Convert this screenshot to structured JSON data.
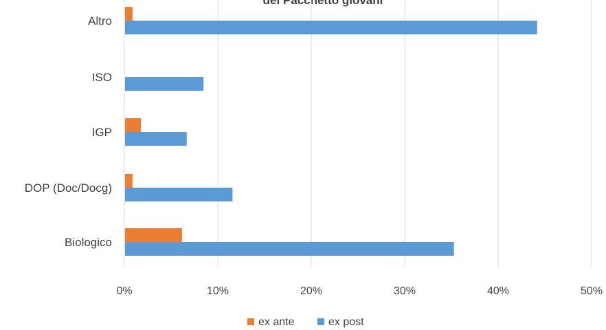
{
  "chart_data": {
    "type": "bar",
    "orientation": "horizontal",
    "title": "del Pacchetto giovani",
    "categories": [
      "Altro",
      "ISO",
      "IGP",
      "DOP (Doc/Docg)",
      "Biologico"
    ],
    "series": [
      {
        "name": "ex ante",
        "color": "#ED7D31",
        "values": [
          0.8,
          0,
          1.7,
          0.8,
          6.1
        ]
      },
      {
        "name": "ex post",
        "color": "#5B9BD5",
        "values": [
          44.1,
          8.4,
          6.6,
          11.5,
          35.2
        ]
      }
    ],
    "xlim": [
      0,
      50
    ],
    "xticks": [
      "0%",
      "10%",
      "20%",
      "30%",
      "40%",
      "50%"
    ],
    "grid": "vertical",
    "legend_position": "bottom"
  }
}
